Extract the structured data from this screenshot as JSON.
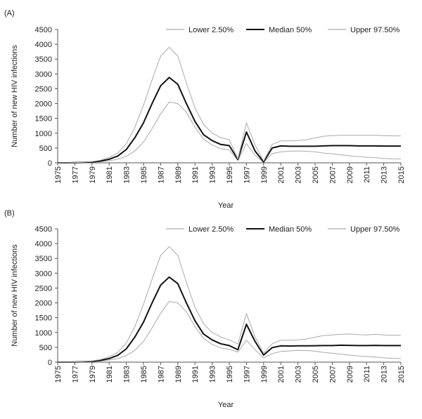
{
  "chart_data": [
    {
      "type": "line",
      "panel_label": "(A)",
      "title": "",
      "xlabel": "Year",
      "ylabel": "Number of new HIV infections",
      "ylim": [
        0,
        4500
      ],
      "yticks": [
        0,
        500,
        1000,
        1500,
        2000,
        2500,
        3000,
        3500,
        4000,
        4500
      ],
      "xlim": [
        1975,
        2015
      ],
      "xticks": [
        1975,
        1977,
        1979,
        1981,
        1983,
        1985,
        1987,
        1989,
        1991,
        1993,
        1995,
        1997,
        1999,
        2001,
        2003,
        2005,
        2007,
        2009,
        2011,
        2013,
        2015
      ],
      "grid": false,
      "legend_position": "top",
      "x": [
        1975,
        1976,
        1977,
        1978,
        1979,
        1980,
        1981,
        1982,
        1983,
        1984,
        1985,
        1986,
        1987,
        1988,
        1989,
        1990,
        1991,
        1992,
        1993,
        1994,
        1995,
        1996,
        1997,
        1998,
        1999,
        2000,
        2001,
        2002,
        2003,
        2004,
        2005,
        2006,
        2007,
        2008,
        2009,
        2010,
        2011,
        2012,
        2013,
        2014,
        2015
      ],
      "series": [
        {
          "name": "Lower 2.50%",
          "color": "#aaaaaa",
          "width": 1,
          "values": [
            0,
            0,
            5,
            10,
            20,
            40,
            70,
            120,
            220,
            400,
            700,
            1150,
            1650,
            2050,
            2000,
            1700,
            1200,
            800,
            600,
            480,
            430,
            80,
            650,
            260,
            20,
            310,
            370,
            390,
            400,
            390,
            370,
            330,
            300,
            270,
            240,
            210,
            190,
            170,
            150,
            135,
            130
          ]
        },
        {
          "name": "Median 50%",
          "color": "#111111",
          "width": 2,
          "values": [
            0,
            0,
            8,
            15,
            30,
            60,
            120,
            230,
            450,
            850,
            1350,
            2000,
            2600,
            2880,
            2650,
            2000,
            1400,
            950,
            750,
            620,
            580,
            110,
            1040,
            400,
            30,
            500,
            570,
            560,
            560,
            560,
            560,
            570,
            580,
            580,
            580,
            570,
            570,
            570,
            565,
            565,
            565
          ]
        },
        {
          "name": "Upper 97.50%",
          "color": "#aaaaaa",
          "width": 1,
          "values": [
            0,
            0,
            10,
            20,
            40,
            90,
            180,
            330,
            650,
            1200,
            1950,
            2800,
            3600,
            3900,
            3600,
            2700,
            1850,
            1300,
            1000,
            850,
            780,
            130,
            1350,
            600,
            60,
            620,
            740,
            740,
            750,
            780,
            840,
            900,
            920,
            930,
            930,
            930,
            930,
            930,
            920,
            910,
            910
          ]
        }
      ]
    },
    {
      "type": "line",
      "panel_label": "(B)",
      "title": "",
      "xlabel": "Year",
      "ylabel": "Number of new HIV infections",
      "ylim": [
        0,
        4500
      ],
      "yticks": [
        0,
        500,
        1000,
        1500,
        2000,
        2500,
        3000,
        3500,
        4000,
        4500
      ],
      "xlim": [
        1975,
        2015
      ],
      "xticks": [
        1975,
        1977,
        1979,
        1981,
        1983,
        1985,
        1987,
        1989,
        1991,
        1993,
        1995,
        1997,
        1999,
        2001,
        2003,
        2005,
        2007,
        2009,
        2011,
        2013,
        2015
      ],
      "grid": false,
      "legend_position": "top",
      "x": [
        1975,
        1976,
        1977,
        1978,
        1979,
        1980,
        1981,
        1982,
        1983,
        1984,
        1985,
        1986,
        1987,
        1988,
        1989,
        1990,
        1991,
        1992,
        1993,
        1994,
        1995,
        1996,
        1997,
        1998,
        1999,
        2000,
        2001,
        2002,
        2003,
        2004,
        2005,
        2006,
        2007,
        2008,
        2009,
        2010,
        2011,
        2012,
        2013,
        2014,
        2015
      ],
      "series": [
        {
          "name": "Lower 2.50%",
          "color": "#aaaaaa",
          "width": 1,
          "values": [
            0,
            0,
            5,
            10,
            20,
            40,
            70,
            120,
            220,
            400,
            700,
            1150,
            1650,
            2050,
            2000,
            1700,
            1200,
            800,
            600,
            480,
            430,
            340,
            740,
            420,
            140,
            290,
            360,
            380,
            395,
            390,
            370,
            330,
            300,
            270,
            240,
            210,
            190,
            170,
            150,
            130,
            120
          ]
        },
        {
          "name": "Median 50%",
          "color": "#111111",
          "width": 2,
          "values": [
            0,
            0,
            8,
            15,
            30,
            60,
            120,
            230,
            450,
            850,
            1350,
            2000,
            2600,
            2870,
            2650,
            2000,
            1400,
            950,
            750,
            620,
            560,
            420,
            1280,
            700,
            240,
            490,
            550,
            545,
            550,
            550,
            555,
            560,
            560,
            570,
            565,
            560,
            560,
            565,
            560,
            560,
            560
          ]
        },
        {
          "name": "Upper 97.50%",
          "color": "#aaaaaa",
          "width": 1,
          "values": [
            0,
            0,
            10,
            20,
            40,
            90,
            180,
            330,
            650,
            1200,
            1950,
            2800,
            3600,
            3900,
            3600,
            2700,
            1850,
            1300,
            1000,
            850,
            750,
            610,
            1640,
            850,
            300,
            620,
            740,
            740,
            750,
            780,
            840,
            900,
            920,
            940,
            950,
            930,
            920,
            940,
            920,
            910,
            910
          ]
        }
      ]
    }
  ]
}
